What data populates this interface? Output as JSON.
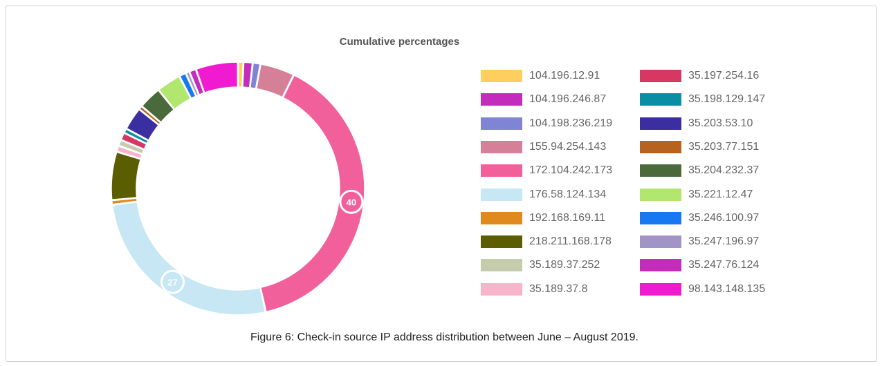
{
  "figure": {
    "caption": "Figure 6: Check-in source IP address distribution between June – August 2019."
  },
  "chart_data": {
    "type": "pie",
    "title": "Cumulative percentages",
    "legend_position": "right",
    "slices": [
      {
        "label": "104.196.12.91",
        "value": 0.7,
        "color": "#ffce5c"
      },
      {
        "label": "35.247.76.124",
        "value": 1.2,
        "color": "#c42cbb"
      },
      {
        "label": "104.198.236.219",
        "value": 1.0,
        "color": "#7f84d4"
      },
      {
        "label": "155.94.254.143",
        "value": 4.5,
        "color": "#d67f98"
      },
      {
        "label": "172.104.242.173",
        "value": 40,
        "color": "#f1609b"
      },
      {
        "label": "176.58.124.134",
        "value": 27,
        "color": "#c6e7f3"
      },
      {
        "label": "192.168.169.11",
        "value": 0.6,
        "color": "#e08a1e"
      },
      {
        "label": "218.211.168.178",
        "value": 6.3,
        "color": "#5a5e00"
      },
      {
        "label": "35.189.37.8",
        "value": 0.8,
        "color": "#f7b4cb"
      },
      {
        "label": "35.189.37.252",
        "value": 0.8,
        "color": "#c5ccac"
      },
      {
        "label": "35.197.254.16",
        "value": 1.0,
        "color": "#d63763"
      },
      {
        "label": "35.198.129.147",
        "value": 0.6,
        "color": "#0a8ea3"
      },
      {
        "label": "35.203.53.10",
        "value": 3.0,
        "color": "#3a2ea0"
      },
      {
        "label": "35.203.77.151",
        "value": 0.5,
        "color": "#b7621e"
      },
      {
        "label": "35.204.232.37",
        "value": 3.0,
        "color": "#4a6a3c"
      },
      {
        "label": "35.221.12.47",
        "value": 3.2,
        "color": "#b1e66f"
      },
      {
        "label": "35.246.100.97",
        "value": 0.9,
        "color": "#1877f2"
      },
      {
        "label": "35.247.196.97",
        "value": 0.5,
        "color": "#a095c6"
      },
      {
        "label": "104.196.246.87",
        "value": 0.9,
        "color": "#c42cbb"
      },
      {
        "label": "98.143.148.135",
        "value": 5.5,
        "color": "#f01bd0"
      }
    ],
    "data_labels": [
      {
        "label": "172.104.242.173",
        "text": "40"
      },
      {
        "label": "176.58.124.134",
        "text": "27"
      }
    ],
    "legend": [
      {
        "label": "104.196.12.91",
        "color": "#ffce5c"
      },
      {
        "label": "35.197.254.16",
        "color": "#d63763"
      },
      {
        "label": "104.196.246.87",
        "color": "#c42cbb"
      },
      {
        "label": "35.198.129.147",
        "color": "#0a8ea3"
      },
      {
        "label": "104.198.236.219",
        "color": "#7f84d4"
      },
      {
        "label": "35.203.53.10",
        "color": "#3a2ea0"
      },
      {
        "label": "155.94.254.143",
        "color": "#d67f98"
      },
      {
        "label": "35.203.77.151",
        "color": "#b7621e"
      },
      {
        "label": "172.104.242.173",
        "color": "#f1609b"
      },
      {
        "label": "35.204.232.37",
        "color": "#4a6a3c"
      },
      {
        "label": "176.58.124.134",
        "color": "#c6e7f3"
      },
      {
        "label": "35.221.12.47",
        "color": "#b1e66f"
      },
      {
        "label": "192.168.169.11",
        "color": "#e08a1e"
      },
      {
        "label": "35.246.100.97",
        "color": "#1877f2"
      },
      {
        "label": "218.211.168.178",
        "color": "#5a5e00"
      },
      {
        "label": "35.247.196.97",
        "color": "#a095c6"
      },
      {
        "label": "35.189.37.252",
        "color": "#c5ccac"
      },
      {
        "label": "35.247.76.124",
        "color": "#c42cbb"
      },
      {
        "label": "35.189.37.8",
        "color": "#f7b4cb"
      },
      {
        "label": "98.143.148.135",
        "color": "#f01bd0"
      }
    ]
  }
}
